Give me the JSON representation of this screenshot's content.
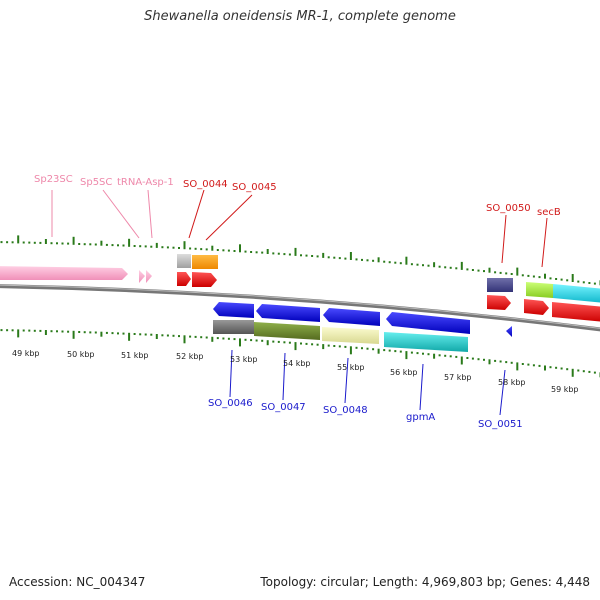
{
  "title": "Shewanella oneidensis MR-1, complete genome",
  "footer": {
    "accession": "Accession: NC_004347",
    "summary": "Topology: circular; Length: 4,969,803 bp; Genes: 4,448"
  },
  "scale_labels": [
    "49 kbp",
    "50 kbp",
    "51 kbp",
    "52 kbp",
    "53 kbp",
    "54 kbp",
    "55 kbp",
    "56 kbp",
    "57 kbp",
    "58 kbp",
    "59 kbp"
  ],
  "top_labels": [
    {
      "text": "Sp23SC",
      "color": "pink"
    },
    {
      "text": "Sp5SC",
      "color": "pink"
    },
    {
      "text": "tRNA-Asp-1",
      "color": "pink"
    },
    {
      "text": "SO_0044",
      "color": "red"
    },
    {
      "text": "SO_0045",
      "color": "red"
    },
    {
      "text": "SO_0050",
      "color": "red"
    },
    {
      "text": "secB",
      "color": "red"
    }
  ],
  "bottom_labels": [
    {
      "text": "SO_0046"
    },
    {
      "text": "SO_0047"
    },
    {
      "text": "SO_0048"
    },
    {
      "text": "gpmA"
    },
    {
      "text": "SO_0051"
    }
  ],
  "colors": {
    "ruler": "#2a7a1a",
    "backbone": "#888888",
    "rrna": "#f7a8c8",
    "cds_red": "#ee1111",
    "cds_blue": "#1a1add",
    "olive": "#6b8e23",
    "gray": "#707070",
    "khaki": "#eeeeaa",
    "teal": "#22cccc",
    "orange": "#ff9900",
    "light_gray": "#bbbbbb",
    "navy": "#444488",
    "lime": "#aaee44",
    "cyan": "#22ddee"
  }
}
